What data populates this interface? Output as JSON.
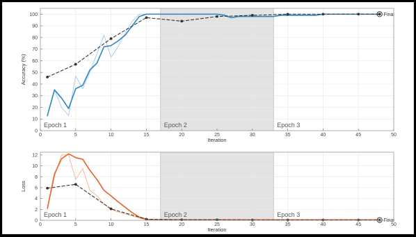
{
  "chart_data": [
    {
      "type": "line",
      "xlabel": "Iteration",
      "ylabel": "Accuracy (%)",
      "xlim": [
        0,
        50
      ],
      "ylim": [
        0,
        105
      ],
      "xticks": [
        0,
        5,
        10,
        15,
        20,
        25,
        30,
        35,
        40,
        45,
        50
      ],
      "yticks": [
        0,
        10,
        20,
        30,
        40,
        50,
        60,
        70,
        80,
        90,
        100
      ],
      "grid": true,
      "epochs": [
        {
          "label": "Epoch 1",
          "start": 0,
          "end": 17,
          "shaded": false
        },
        {
          "label": "Epoch 2",
          "start": 17,
          "end": 33,
          "shaded": true
        },
        {
          "label": "Epoch 3",
          "start": 33,
          "end": 50,
          "shaded": false
        }
      ],
      "final_label": "Final",
      "series": [
        {
          "role": "raw",
          "color": "#a9cfee",
          "x": [
            1,
            2,
            3,
            4,
            5,
            6,
            7,
            8,
            9,
            10,
            11,
            12,
            13,
            14,
            15,
            16,
            17,
            18,
            19,
            20,
            21,
            22,
            23,
            24,
            25,
            26,
            27,
            28,
            29,
            30,
            31,
            32,
            33,
            34,
            35,
            36,
            37,
            38,
            39,
            40,
            41,
            42,
            43,
            44,
            45,
            46,
            47,
            48
          ],
          "y": [
            12,
            35,
            20,
            13,
            47,
            36,
            50,
            66,
            82,
            63,
            72,
            84,
            94,
            100,
            100,
            100,
            100,
            100,
            100,
            100,
            100,
            100,
            100,
            100,
            100,
            100,
            97,
            99,
            99,
            100,
            98,
            98,
            98,
            100,
            100,
            100,
            100,
            100,
            100,
            100,
            100,
            100,
            100,
            100,
            100,
            100,
            100,
            100
          ]
        },
        {
          "role": "smoothed",
          "color": "#2e86c1",
          "x": [
            1,
            2,
            3,
            4,
            5,
            6,
            7,
            8,
            9,
            10,
            11,
            12,
            13,
            14,
            15,
            16,
            17,
            18,
            19,
            20,
            21,
            22,
            23,
            24,
            25,
            26,
            27,
            28,
            29,
            30,
            31,
            32,
            33,
            34,
            35,
            36,
            37,
            38,
            39,
            40,
            41,
            42,
            43,
            44,
            45,
            46,
            47,
            48
          ],
          "y": [
            13,
            35,
            28,
            19,
            36,
            39,
            52,
            58,
            72,
            73,
            77,
            82,
            90,
            98,
            100,
            100,
            100,
            100,
            100,
            100,
            100,
            100,
            100,
            100,
            100,
            99,
            97,
            98,
            98,
            98,
            98,
            98,
            98,
            99,
            99,
            99,
            99,
            99,
            99,
            100,
            100,
            100,
            100,
            100,
            100,
            100,
            100,
            100
          ]
        },
        {
          "role": "validation",
          "color": "#333333",
          "x": [
            1,
            5,
            10,
            15,
            20,
            25,
            30,
            35,
            40,
            45,
            48
          ],
          "y": [
            46,
            57,
            79,
            97,
            94,
            98,
            99,
            100,
            100,
            100,
            100
          ]
        }
      ]
    },
    {
      "type": "line",
      "xlabel": "Iteration",
      "ylabel": "Loss",
      "xlim": [
        0,
        50
      ],
      "ylim": [
        0,
        12.5
      ],
      "xticks": [
        0,
        5,
        10,
        15,
        20,
        25,
        30,
        35,
        40,
        45,
        50
      ],
      "yticks": [
        0,
        2,
        4,
        6,
        8,
        10,
        12
      ],
      "grid": true,
      "epochs": [
        {
          "label": "Epoch 1",
          "start": 0,
          "end": 17,
          "shaded": false
        },
        {
          "label": "Epoch 2",
          "start": 17,
          "end": 33,
          "shaded": true
        },
        {
          "label": "Epoch 3",
          "start": 33,
          "end": 50,
          "shaded": false
        }
      ],
      "final_label": "Final",
      "series": [
        {
          "role": "raw",
          "color": "#f5b89a",
          "x": [
            1,
            2,
            3,
            4,
            5,
            6,
            7,
            8,
            9,
            10,
            11,
            12,
            13,
            14,
            15,
            16,
            17,
            18,
            19,
            20,
            21,
            22,
            23,
            24,
            25,
            26,
            27,
            28,
            29,
            30,
            31,
            32,
            33,
            34,
            35,
            36,
            37,
            38,
            39,
            40,
            41,
            42,
            43,
            44,
            45,
            46,
            47,
            48
          ],
          "y": [
            2,
            8,
            12,
            12,
            7.5,
            9.5,
            5.5,
            4.5,
            3,
            2,
            1.5,
            1.2,
            0.8,
            0.4,
            0.1,
            0.05,
            0.05,
            0.05,
            0.05,
            0.05,
            0.05,
            0.05,
            0.05,
            0.05,
            0.05,
            0.05,
            0.05,
            0.05,
            0.05,
            0.05,
            0.05,
            0.05,
            0.05,
            0.05,
            0.05,
            0.05,
            0.05,
            0.05,
            0.05,
            0.05,
            0.05,
            0.05,
            0.05,
            0.05,
            0.05,
            0.05,
            0.05,
            0.05
          ]
        },
        {
          "role": "smoothed",
          "color": "#e8642a",
          "x": [
            1,
            2,
            3,
            4,
            5,
            6,
            7,
            8,
            9,
            10,
            11,
            12,
            13,
            14,
            15,
            16,
            17,
            18,
            19,
            20,
            21,
            22,
            23,
            24,
            25,
            26,
            27,
            28,
            29,
            30,
            31,
            32,
            33,
            34,
            35,
            36,
            37,
            38,
            39,
            40,
            41,
            42,
            43,
            44,
            45,
            46,
            47,
            48
          ],
          "y": [
            2.2,
            8.5,
            11.3,
            12.2,
            11.5,
            11.2,
            9.2,
            7.5,
            5.5,
            4.5,
            3.4,
            2.4,
            1.4,
            0.6,
            0.2,
            0.1,
            0.1,
            0.1,
            0.1,
            0.1,
            0.1,
            0.1,
            0.1,
            0.1,
            0.1,
            0.1,
            0.1,
            0.1,
            0.1,
            0.1,
            0.1,
            0.1,
            0.1,
            0.1,
            0.1,
            0.1,
            0.1,
            0.1,
            0.1,
            0.1,
            0.1,
            0.1,
            0.1,
            0.1,
            0.1,
            0.1,
            0.1,
            0.1
          ]
        },
        {
          "role": "validation",
          "color": "#333333",
          "x": [
            1,
            5,
            10,
            15,
            20,
            25,
            30,
            35,
            40,
            45,
            48
          ],
          "y": [
            5.9,
            6.6,
            2.1,
            0.2,
            0.1,
            0.1,
            0.05,
            0.05,
            0.05,
            0.05,
            0.05
          ]
        }
      ]
    }
  ]
}
